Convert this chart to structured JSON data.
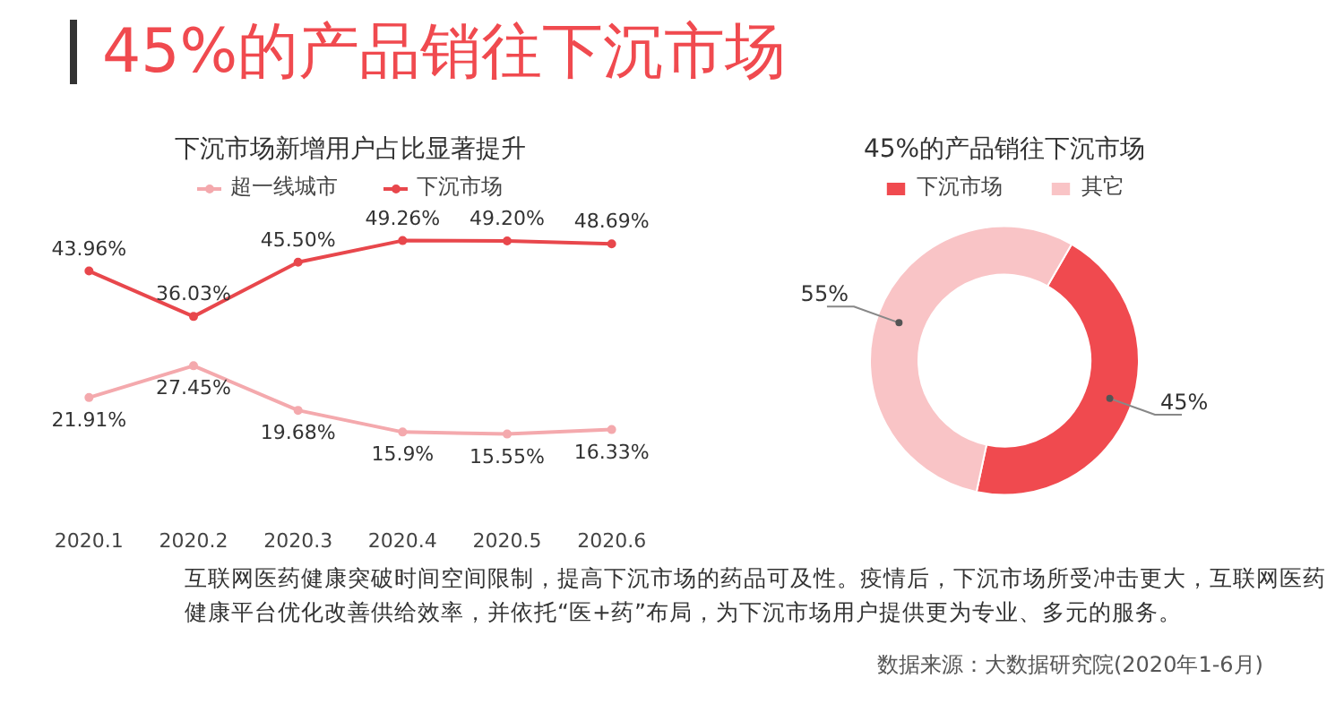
{
  "chart_data": [
    {
      "type": "other",
      "title": "45%的产品销往下沉市场",
      "annotations": [
        "互联网医药健康突破时间空间限制，提高下沉市场的药品可及性。疫情后，下沉市场所受冲击更大，互联网医药健康平台优化改善供给效率，并依托“医+药”布局，为下沉市场用户提供更为专业、多元的服务。",
        "数据来源：大数据研究院(2020年1-6月)"
      ]
    },
    {
      "type": "line",
      "title": "下沉市场新增用户占比显著提升",
      "categories": [
        "2020.1",
        "2020.2",
        "2020.3",
        "2020.4",
        "2020.5",
        "2020.6"
      ],
      "legend": "top",
      "marker": "circle",
      "series": [
        {
          "name": "超一线城市",
          "color": "#f4a9ad",
          "values": [
            21.91,
            27.45,
            19.68,
            15.9,
            15.55,
            16.33
          ],
          "value_labels": [
            "21.91%",
            "27.45%",
            "19.68%",
            "15.9%",
            "15.55%",
            "16.33%"
          ]
        },
        {
          "name": "下沉市场",
          "color": "#e8474c",
          "values": [
            43.96,
            36.03,
            45.5,
            49.26,
            49.2,
            48.69
          ],
          "value_labels": [
            "43.96%",
            "36.03%",
            "45.50%",
            "49.26%",
            "49.20%",
            "48.69%"
          ]
        }
      ]
    },
    {
      "type": "donut",
      "title": "45%的产品销往下沉市场",
      "categories": [
        "下沉市场",
        "其它"
      ],
      "values": [
        45,
        55
      ],
      "colors": [
        "#f04a4f",
        "#f9c4c6"
      ],
      "value_labels": [
        "45%",
        "55%"
      ],
      "legend": "top"
    }
  ]
}
